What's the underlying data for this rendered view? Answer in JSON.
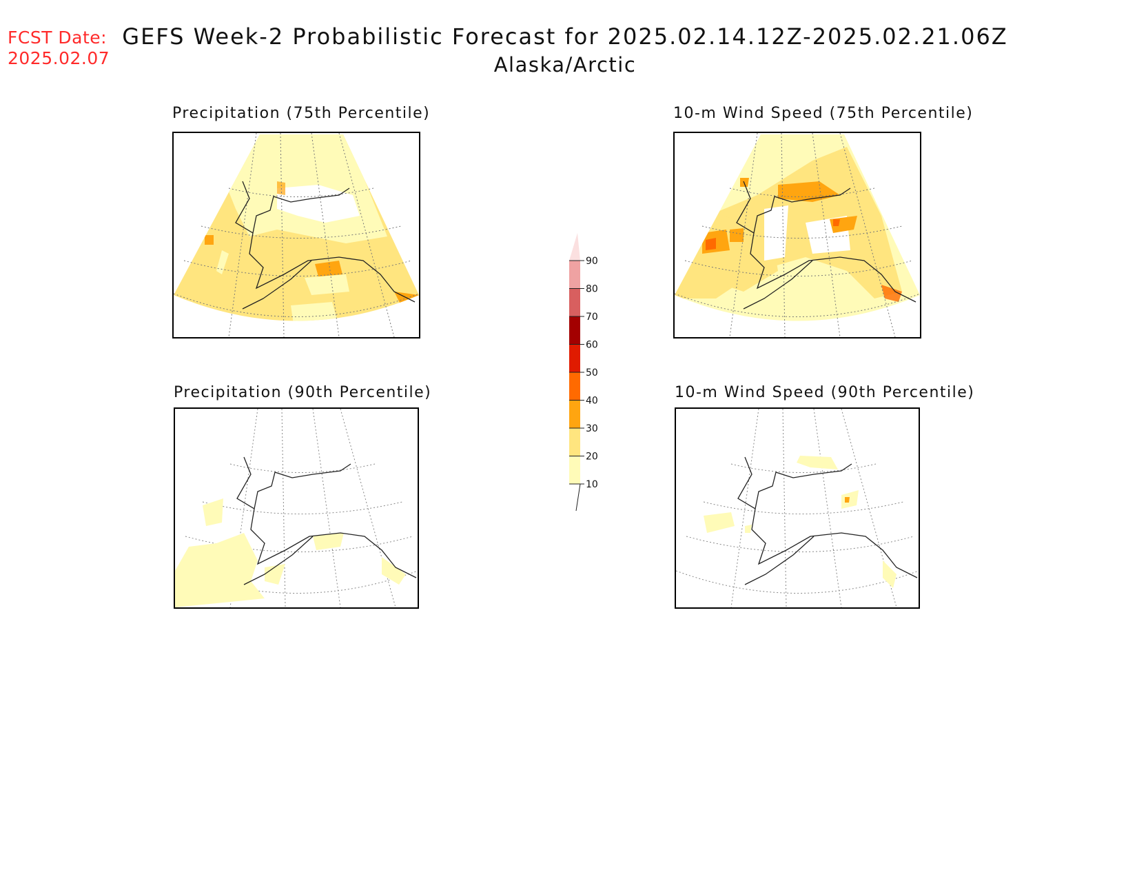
{
  "header": {
    "fcst_label": "FCST Date:",
    "fcst_date": "2025.02.07",
    "title": "GEFS Week-2 Probabilistic Forecast for 2025.02.14.12Z-2025.02.21.06Z",
    "region": "Alaska/Arctic"
  },
  "panels": [
    {
      "title": "Precipitation (75th Percentile)"
    },
    {
      "title": "10-m Wind Speed (75th Percentile)"
    },
    {
      "title": "Precipitation (90th Percentile)"
    },
    {
      "title": "10-m Wind Speed (90th Percentile)"
    }
  ],
  "colorbar": {
    "levels": [
      "10",
      "20",
      "30",
      "40",
      "50",
      "60",
      "70",
      "80",
      "90"
    ],
    "colors": [
      "#fffbb8",
      "#ffe57f",
      "#ffa510",
      "#ff6a00",
      "#e01b00",
      "#a30000",
      "#d85f5f",
      "#efa2a2",
      "#fbe0e0"
    ]
  }
}
